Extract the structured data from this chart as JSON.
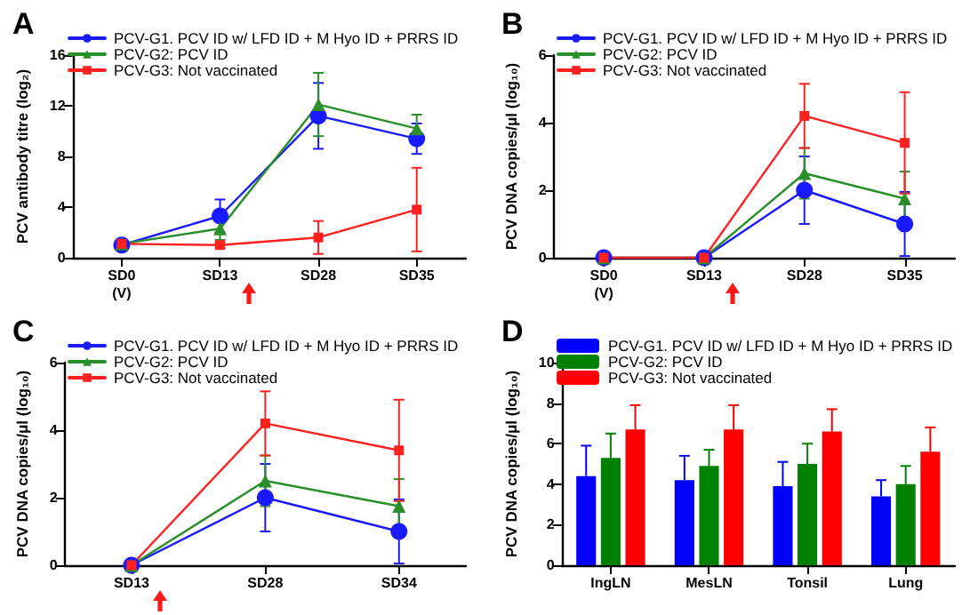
{
  "chart_data": [
    {
      "type": "line",
      "title": "A",
      "ylabel": "PCV antibody titre (log₂)",
      "categories": [
        "SD0\n(V)",
        "SD13",
        "SD28",
        "SD35"
      ],
      "ylim": [
        0,
        16
      ],
      "yticks": [
        0,
        4,
        8,
        12,
        16
      ],
      "legend": "top left",
      "series": [
        {
          "name": "PCV-G1. PCV ID w/ LFD ID + M Hyo ID + PRRS ID",
          "color": "#1a1aff",
          "marker": "circle",
          "values": [
            1.0,
            3.3,
            11.2,
            9.4
          ],
          "errors": [
            0.3,
            1.3,
            2.6,
            1.2
          ]
        },
        {
          "name": "PCV-G2: PCV ID",
          "color": "#2a8f2a",
          "marker": "triangle",
          "values": [
            1.1,
            2.3,
            12.1,
            10.2
          ],
          "errors": [
            0.3,
            0.9,
            2.5,
            1.1
          ]
        },
        {
          "name": "PCV-G3: Not vaccinated",
          "color": "#ff2020",
          "marker": "square",
          "values": [
            1.1,
            1.0,
            1.6,
            3.8
          ],
          "errors": [
            0.3,
            0.2,
            1.3,
            3.3
          ]
        }
      ]
    },
    {
      "type": "line",
      "title": "B",
      "ylabel": "PCV DNA copies/μl (log₁₀)",
      "categories": [
        "SD0\n(V)",
        "SD13",
        "SD28",
        "SD35"
      ],
      "ylim": [
        0,
        6
      ],
      "yticks": [
        0,
        2,
        4,
        6
      ],
      "legend": "top left",
      "series": [
        {
          "name": "PCV-G1. PCV ID w/ LFD ID + M Hyo ID + PRRS ID",
          "color": "#1a1aff",
          "marker": "circle",
          "values": [
            0,
            0,
            2.0,
            1.0
          ],
          "errors": [
            null,
            null,
            1.0,
            0.95
          ]
        },
        {
          "name": "PCV-G2: PCV ID",
          "color": "#2a8f2a",
          "marker": "triangle",
          "values": [
            0,
            0,
            2.5,
            1.75
          ],
          "errors": [
            null,
            null,
            0.75,
            0.8
          ]
        },
        {
          "name": "PCV-G3: Not vaccinated",
          "color": "#ff2020",
          "marker": "square",
          "values": [
            0,
            0,
            4.2,
            3.4
          ],
          "errors": [
            null,
            null,
            0.95,
            1.5
          ]
        }
      ]
    },
    {
      "type": "line",
      "title": "C",
      "ylabel": "PCV DNA copies/μl (log₁₀)",
      "categories": [
        "SD13",
        "SD28",
        "SD34"
      ],
      "ylim": [
        0,
        6
      ],
      "yticks": [
        0,
        2,
        4,
        6
      ],
      "legend": "top left",
      "series": [
        {
          "name": "PCV-G1. PCV ID w/ LFD ID + M Hyo ID + PRRS ID",
          "color": "#1a1aff",
          "marker": "circle",
          "values": [
            0,
            2.0,
            1.0
          ],
          "errors": [
            null,
            1.0,
            0.95
          ]
        },
        {
          "name": "PCV-G2: PCV ID",
          "color": "#2a8f2a",
          "marker": "triangle",
          "values": [
            0,
            2.5,
            1.75
          ],
          "errors": [
            null,
            0.75,
            0.8
          ]
        },
        {
          "name": "PCV-G3: Not vaccinated",
          "color": "#ff2020",
          "marker": "square",
          "values": [
            0,
            4.2,
            3.4
          ],
          "errors": [
            null,
            0.95,
            1.5
          ]
        }
      ]
    },
    {
      "type": "bar",
      "title": "D",
      "ylabel": "PCV DNA copies/μl (log₁₀)",
      "categories": [
        "IngLN",
        "MesLN",
        "Tonsil",
        "Lung"
      ],
      "ylim": [
        0,
        10
      ],
      "yticks": [
        0,
        2,
        4,
        6,
        8,
        10
      ],
      "legend": "top left",
      "series": [
        {
          "name": "PCV-G1. PCV ID w/ LFD ID + M Hyo ID + PRRS ID",
          "color": "#0000ff",
          "values": [
            4.4,
            4.2,
            3.9,
            3.4
          ],
          "errors": [
            [
              4.4,
              5.9
            ],
            [
              4.2,
              5.4
            ],
            [
              3.9,
              5.1
            ],
            [
              3.4,
              4.2
            ]
          ]
        },
        {
          "name": "PCV-G2: PCV ID",
          "color": "#008000",
          "values": [
            5.3,
            4.9,
            5.0,
            4.0
          ],
          "errors": [
            [
              5.3,
              6.5
            ],
            [
              4.9,
              5.7
            ],
            [
              5.0,
              6.0
            ],
            [
              4.0,
              4.9
            ]
          ]
        },
        {
          "name": "PCV-G3: Not vaccinated",
          "color": "#ff0000",
          "values": [
            6.7,
            6.7,
            6.6,
            5.6
          ],
          "errors": [
            [
              6.7,
              7.9
            ],
            [
              6.7,
              7.9
            ],
            [
              6.6,
              7.7
            ],
            [
              5.6,
              6.8
            ]
          ]
        }
      ]
    }
  ]
}
